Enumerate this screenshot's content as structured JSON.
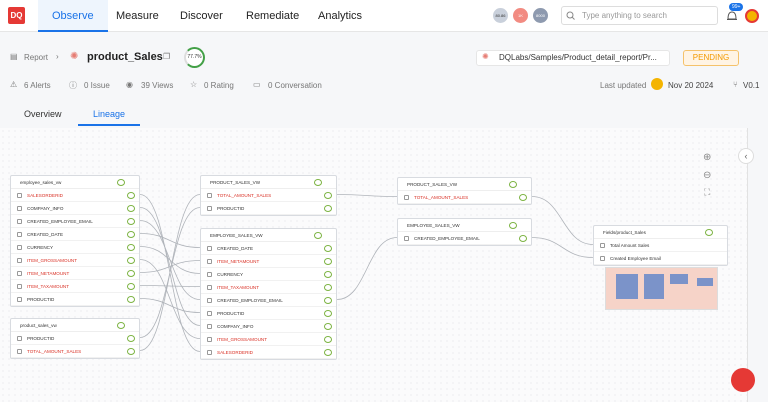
{
  "nav": {
    "logo": "DQ",
    "tabs": [
      "Observe",
      "Measure",
      "Discover",
      "Remediate",
      "Analytics"
    ],
    "active_tab": 0,
    "badges": [
      "80.86",
      "1K",
      "8000"
    ],
    "search_placeholder": "Type anything to search",
    "notifications": "99+"
  },
  "header": {
    "breadcrumb": "Report",
    "title": "product_Sales",
    "score": "77.7%",
    "path": "DQLabs/Samples/Product_detail_report/Pr...",
    "status": "PENDING"
  },
  "stats": {
    "alerts": "6 Alerts",
    "issues": "0 Issue",
    "views": "39 Views",
    "rating": "0 Rating",
    "conversations": "0 Conversation",
    "last_updated_label": "Last updated",
    "last_updated": "Nov 20 2024",
    "version": "V0.1"
  },
  "tabs": {
    "items": [
      "Overview",
      "Lineage"
    ],
    "active": 1
  },
  "lineage": {
    "nodes": [
      {
        "title": "employee_sales_vw",
        "fields": [
          {
            "label": "SALESORDERID",
            "alert": true
          },
          {
            "label": "COMPANY_INFO",
            "alert": false
          },
          {
            "label": "CREATED_EMPLOYEE_EMAIL",
            "alert": false
          },
          {
            "label": "CREATED_DATE",
            "alert": false
          },
          {
            "label": "CURRENCY",
            "alert": false
          },
          {
            "label": "ITEM_GROSSAMOUNT",
            "alert": true
          },
          {
            "label": "ITEM_NETAMOUNT",
            "alert": true
          },
          {
            "label": "ITEM_TAXAMOUNT",
            "alert": true
          },
          {
            "label": "PRODUCTID",
            "alert": false
          }
        ]
      },
      {
        "title": "product_sales_vw",
        "fields": [
          {
            "label": "PRODUCTID",
            "alert": false
          },
          {
            "label": "TOTAL_AMOUNT_SALES",
            "alert": true
          }
        ]
      },
      {
        "title": "PRODUCT_SALES_VW",
        "fields": [
          {
            "label": "TOTAL_AMOUNT_SALES",
            "alert": true
          },
          {
            "label": "PRODUCTID",
            "alert": false
          }
        ]
      },
      {
        "title": "EMPLOYEE_SALES_VW",
        "fields": [
          {
            "label": "CREATED_DATE",
            "alert": false
          },
          {
            "label": "ITEM_NETAMOUNT",
            "alert": true
          },
          {
            "label": "CURRENCY",
            "alert": false
          },
          {
            "label": "ITEM_TAXAMOUNT",
            "alert": true
          },
          {
            "label": "CREATED_EMPLOYEE_EMAIL",
            "alert": false
          },
          {
            "label": "PRODUCTID",
            "alert": false
          },
          {
            "label": "COMPANY_INFO",
            "alert": false
          },
          {
            "label": "ITEM_GROSSAMOUNT",
            "alert": true
          },
          {
            "label": "SALESORDERID",
            "alert": true
          }
        ]
      },
      {
        "title": "PRODUCT_SALES_VW",
        "fields": [
          {
            "label": "TOTAL_AMOUNT_SALES",
            "alert": true
          }
        ]
      },
      {
        "title": "EMPLOYEE_SALES_VW",
        "fields": [
          {
            "label": "CREATED_EMPLOYEE_EMAIL",
            "alert": false
          }
        ]
      },
      {
        "title": "Fields/product_Sales",
        "fields": [
          {
            "label": "Total Amount Sales",
            "alert": false
          },
          {
            "label": "Created Employee Email",
            "alert": false
          }
        ]
      }
    ]
  }
}
